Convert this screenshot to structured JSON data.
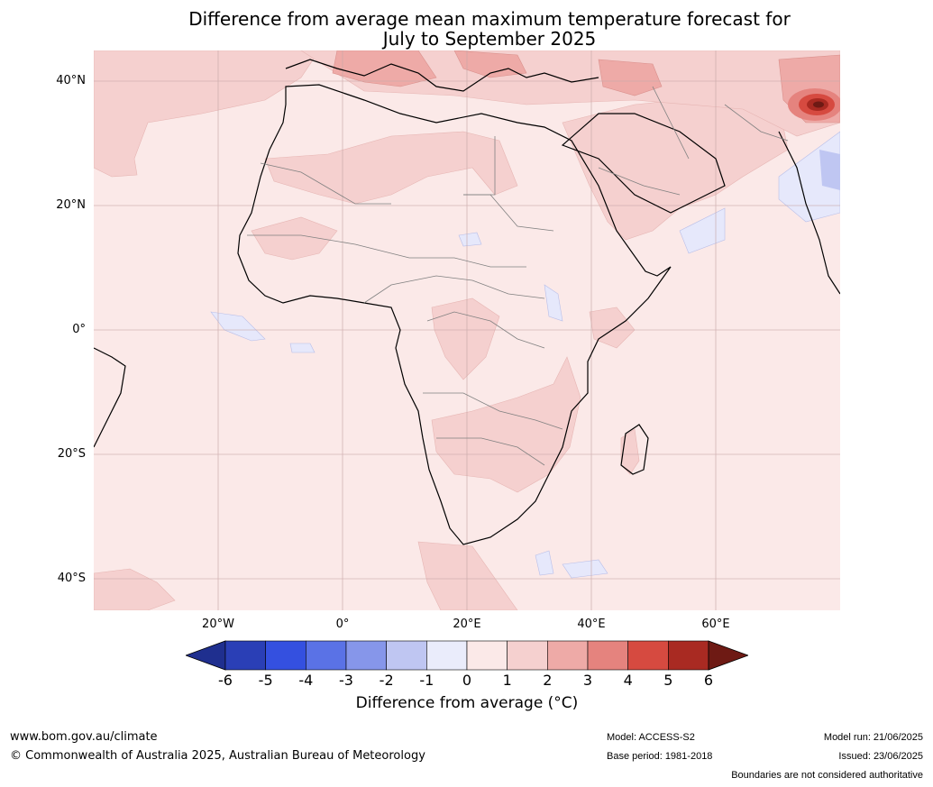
{
  "title_line1": "Difference from average mean maximum temperature forecast for",
  "title_line2": "July to September 2025",
  "lat_labels": [
    "40°N",
    "20°N",
    "0°",
    "20°S",
    "40°S"
  ],
  "lon_labels": [
    "20°W",
    "0°",
    "20°E",
    "40°E",
    "60°E"
  ],
  "colorbar": {
    "ticks": [
      "-6",
      "-5",
      "-4",
      "-3",
      "-2",
      "-1",
      "0",
      "1",
      "2",
      "3",
      "4",
      "5",
      "6"
    ],
    "colors": [
      "#1f2f8f",
      "#2a3fb6",
      "#3450e0",
      "#5a72e6",
      "#8696ea",
      "#bfc6f2",
      "#eaecfb",
      "#fbe9e8",
      "#f5d0cf",
      "#eeaaa7",
      "#e5837e",
      "#d64a40",
      "#a92a22",
      "#6e1a14"
    ],
    "label": "Difference from average (°C)"
  },
  "footer": {
    "url": "www.bom.gov.au/climate",
    "copyright": "© Commonwealth of Australia 2025, Australian Bureau of Meteorology",
    "model": "Model: ACCESS-S2",
    "base_period": "Base period: 1981-2018",
    "model_run": "Model run: 21/06/2025",
    "issued": "Issued: 23/06/2025",
    "disclaimer": "Boundaries are not considered authoritative"
  },
  "map": {
    "lon_range": [
      -40,
      80
    ],
    "lat_range": [
      -45,
      45
    ],
    "background_anomaly_color": "#fbe9e8",
    "coastline_color": "#000000",
    "border_color": "#808080",
    "gridline_color": "#c8a8a8"
  }
}
